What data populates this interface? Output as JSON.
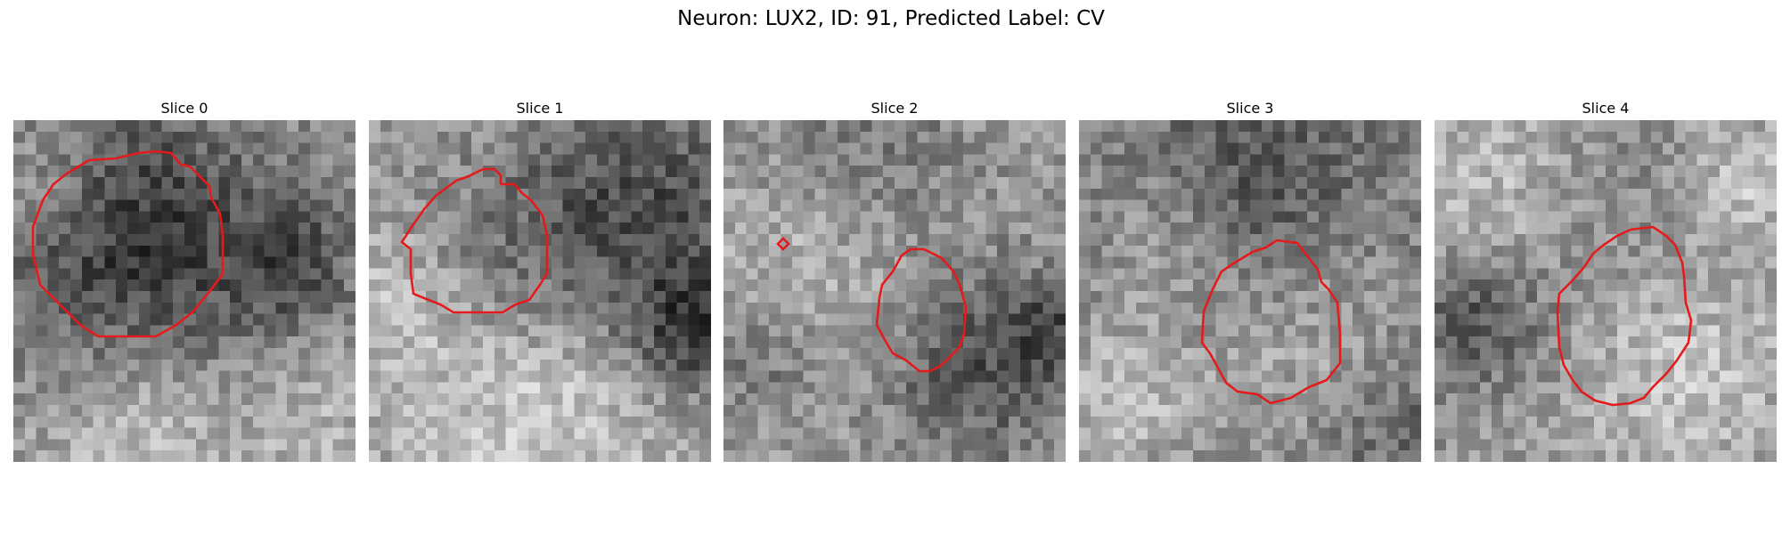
{
  "figure": {
    "title": "Neuron: LUX2, ID: 91, Predicted Label: CV"
  },
  "panels": [
    {
      "title": "Slice 0",
      "contour_color": "#e41a1c"
    },
    {
      "title": "Slice 1",
      "contour_color": "#e41a1c"
    },
    {
      "title": "Slice 2",
      "contour_color": "#e41a1c"
    },
    {
      "title": "Slice 3",
      "contour_color": "#e41a1c"
    },
    {
      "title": "Slice 4",
      "contour_color": "#e41a1c"
    }
  ],
  "colormap": "gray"
}
